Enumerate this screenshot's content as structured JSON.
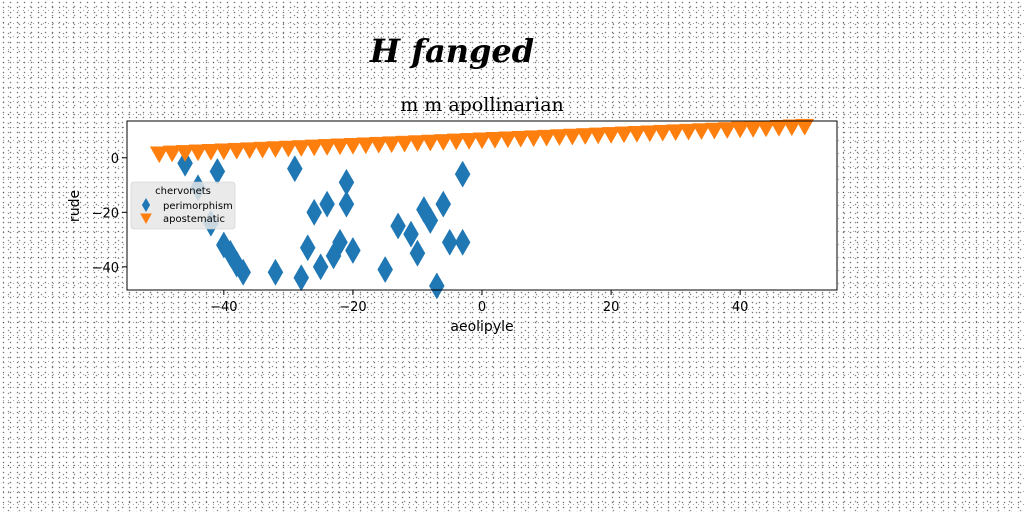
{
  "chart_data": {
    "type": "scatter",
    "suptitle": "H fanged",
    "title": "m m apollinarian",
    "xlabel": "aeolipyle",
    "ylabel": "rude",
    "xlim": [
      -55,
      55
    ],
    "ylim": [
      -48.5,
      13.5
    ],
    "xticks": [
      -40,
      -20,
      0,
      20,
      40
    ],
    "yticks": [
      -40,
      -20,
      0
    ],
    "xtick_labels": [
      "−40",
      "−20",
      "0",
      "20",
      "40"
    ],
    "ytick_labels": [
      "−40",
      "−20",
      "0"
    ],
    "grid": false,
    "legend": {
      "title": "chervonets",
      "placement": "center-left"
    },
    "series": [
      {
        "name": "perimorphism",
        "marker": "thin-diamond",
        "color": "#1f77b4",
        "x": [
          -46,
          -44,
          -42,
          -41,
          -40,
          -39,
          -38,
          -37,
          -32,
          -29,
          -28,
          -27,
          -26,
          -25,
          -24,
          -23,
          -22,
          -21,
          -21,
          -20,
          -15,
          -13,
          -11,
          -10,
          -9,
          -8,
          -7,
          -6,
          -5,
          -3,
          -3
        ],
        "y": [
          -2,
          -11,
          -24,
          -5,
          -32,
          -35,
          -39,
          -42,
          -42,
          -4,
          -44,
          -33,
          -20,
          -40,
          -17,
          -36,
          -31,
          -9,
          -17,
          -34,
          -41,
          -25,
          -28,
          -35,
          -19,
          -23,
          -47,
          -17,
          -31,
          -6,
          -31
        ]
      },
      {
        "name": "apostematic",
        "marker": "triangle-down",
        "color": "#ff7f0e",
        "x": [
          -50,
          -48,
          -46,
          -44,
          -42,
          -40,
          -38,
          -36,
          -34,
          -32,
          -30,
          -28,
          -26,
          -24,
          -22,
          -20,
          -18,
          -16,
          -14,
          -12,
          -10,
          -8,
          -6,
          -4,
          -2,
          0,
          2,
          4,
          6,
          8,
          10,
          12,
          14,
          16,
          18,
          20,
          22,
          24,
          26,
          28,
          30,
          32,
          34,
          36,
          38,
          40,
          42,
          44,
          46,
          48,
          50
        ],
        "y": [
          1.5,
          1.8,
          2.0,
          2.2,
          2.4,
          2.6,
          2.8,
          3.0,
          3.2,
          3.4,
          3.6,
          3.8,
          4.0,
          4.2,
          4.4,
          4.6,
          4.8,
          5.0,
          5.2,
          5.4,
          5.6,
          5.8,
          6.0,
          6.2,
          6.4,
          6.6,
          6.8,
          7.0,
          7.2,
          7.4,
          7.6,
          7.8,
          8.0,
          8.2,
          8.4,
          8.6,
          8.8,
          9.0,
          9.2,
          9.4,
          9.6,
          9.8,
          10.0,
          10.2,
          10.4,
          10.6,
          10.8,
          11.0,
          11.2,
          11.4,
          11.6
        ]
      }
    ]
  }
}
